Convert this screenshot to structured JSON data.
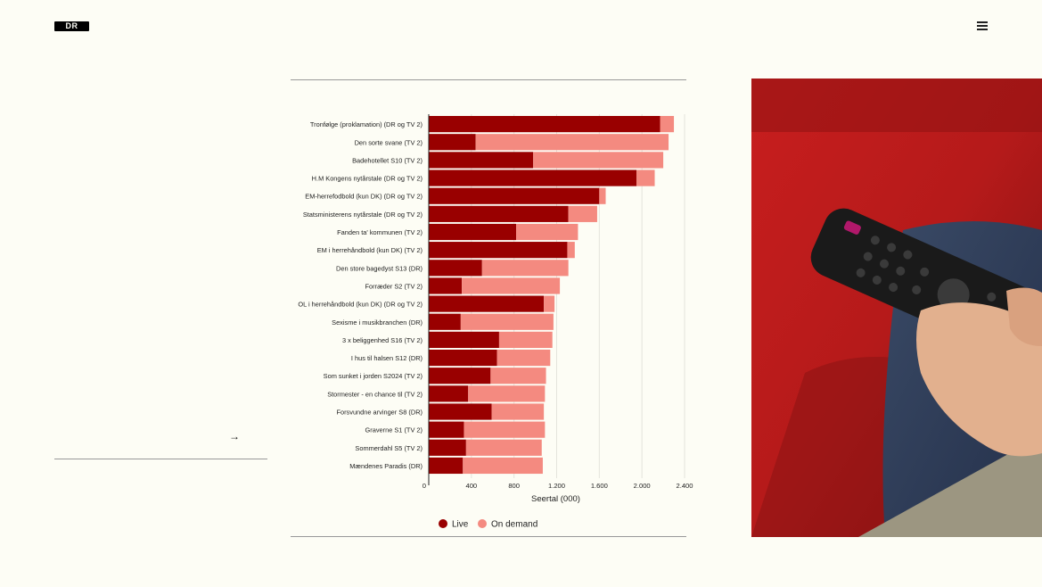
{
  "header": {
    "logo_text": "DR",
    "logo_icon": "dr-logo",
    "menu_icon": "hamburger-menu-icon"
  },
  "sidebar": {
    "link_icon": "arrow-right-icon"
  },
  "colors": {
    "live": "#990000",
    "on_demand": "#f48a80",
    "background": "#fdfdf5"
  },
  "chart_data": {
    "type": "bar",
    "orientation": "horizontal",
    "stacked": true,
    "categories": [
      "Tronfølge (proklamation) (DR og TV 2)",
      "Den sorte svane (TV 2)",
      "Badehotellet S10 (TV 2)",
      "H.M Kongens nytårstale (DR og TV 2)",
      "EM-herrefodbold (kun DK) (DR og TV 2)",
      "Statsministerens nytårstale (DR og TV 2)",
      "Fanden ta' kommunen (TV 2)",
      "EM i herrehåndbold (kun DK) (TV 2)",
      "Den store bagedyst S13 (DR)",
      "Forræder S2 (TV 2)",
      "OL i herrehåndbold (kun DK) (DR og TV 2)",
      "Sexisme i musikbranchen (DR)",
      "3 x beliggenhed S16 (TV 2)",
      "I hus til halsen S12 (DR)",
      "Som sunket i jorden S2024 (TV 2)",
      "Stormester - en chance til (TV 2)",
      "Forsvundne arvinger S8 (DR)",
      "Graverne S1 (TV 2)",
      "Sommerdahl S5 (TV 2)",
      "Mændenes Paradis (DR)"
    ],
    "series": [
      {
        "name": "Live",
        "values": [
          2170,
          440,
          980,
          1950,
          1600,
          1310,
          820,
          1300,
          500,
          310,
          1080,
          300,
          660,
          640,
          580,
          370,
          590,
          330,
          350,
          320
        ]
      },
      {
        "name": "On demand",
        "values": [
          130,
          1810,
          1220,
          170,
          60,
          270,
          580,
          70,
          810,
          920,
          100,
          870,
          500,
          500,
          520,
          720,
          490,
          760,
          710,
          750
        ]
      }
    ],
    "xlabel": "Seertal (000)",
    "ylabel": "",
    "xlim": [
      0,
      2400
    ],
    "xticks": [
      0,
      400,
      800,
      1200,
      1600,
      2000,
      2400
    ],
    "xtick_labels": [
      "0",
      "400",
      "800",
      "1.200",
      "1.600",
      "2.000",
      "2.400"
    ],
    "grid": true,
    "legend_position": "bottom"
  }
}
